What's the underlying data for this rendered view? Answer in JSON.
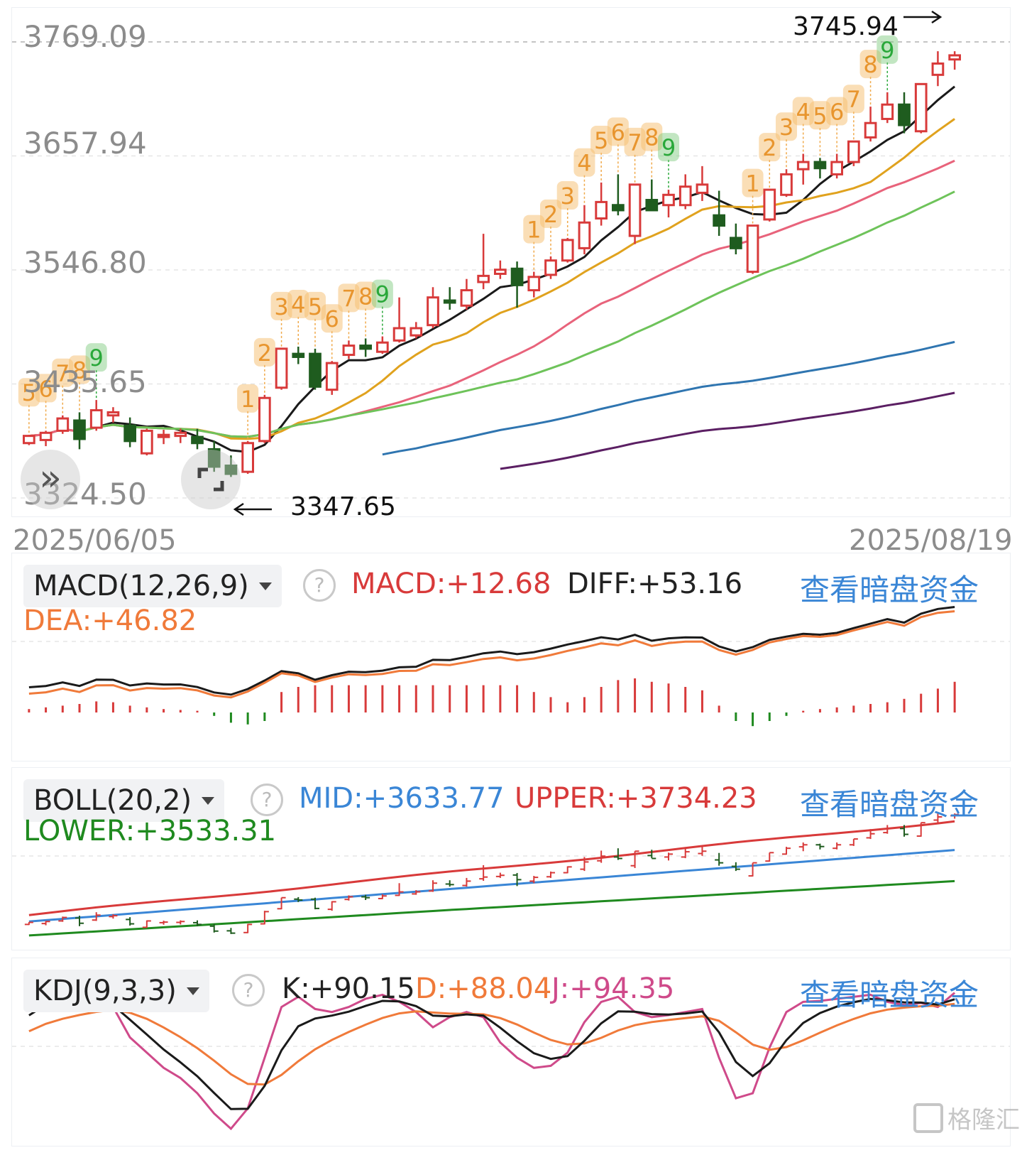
{
  "main_chart": {
    "price_labels": [
      "3769.09",
      "3657.94",
      "3546.80",
      "3435.65",
      "3324.50"
    ],
    "high_marker": "3745.94",
    "low_marker": "3347.65",
    "start_date": "2025/06/05",
    "end_date": "2025/08/19",
    "td_sequences": [
      {
        "labels": [
          "5",
          "6",
          "7",
          "8",
          "9"
        ],
        "completed": true
      },
      {
        "labels": [
          "1",
          "2",
          "3",
          "4",
          "5",
          "6",
          "7",
          "8",
          "9"
        ],
        "completed": true
      },
      {
        "labels": [
          "1",
          "2",
          "3",
          "4",
          "5",
          "6",
          "7",
          "8",
          "9"
        ],
        "completed": true
      },
      {
        "labels": [
          "1",
          "2",
          "3",
          "4",
          "5",
          "6",
          "7",
          "8",
          "9"
        ],
        "completed": true
      }
    ],
    "colors": {
      "up": "#d83a3a",
      "down": "#1f5c1f",
      "td_orange": "#f0a94a",
      "td_green": "#2aa83a"
    }
  },
  "macd": {
    "selector": "MACD(12,26,9)",
    "macd_value": "MACD:+12.68",
    "diff_value": "DIFF:+53.16",
    "dea_value": "DEA:+46.82",
    "link": "查看暗盘资金"
  },
  "boll": {
    "selector": "BOLL(20,2)",
    "mid_value": "MID:+3633.77",
    "upper_value": "UPPER:+3734.23",
    "lower_value": "LOWER:+3533.31",
    "link": "查看暗盘资金"
  },
  "kdj": {
    "selector": "KDJ(9,3,3)",
    "k_value": "K:+90.15",
    "d_value": "D:+88.04",
    "j_value": "J:+94.35",
    "link": "查看暗盘资金"
  },
  "watermark": "格隆汇",
  "chart_data": {
    "type": "candlestick",
    "x": [
      "2025/06/05",
      "2025/08/19"
    ],
    "ylim": [
      3324.5,
      3769.09
    ],
    "y_ticks": [
      3324.5,
      3435.65,
      3546.8,
      3657.94,
      3769.09
    ],
    "series": [
      {
        "name": "",
        "ohlc": [
          [
            3378,
            3386,
            3376,
            3385
          ],
          [
            3381,
            3390,
            3375,
            3388
          ],
          [
            3390,
            3405,
            3387,
            3402
          ],
          [
            3400,
            3408,
            3372,
            3382
          ],
          [
            3393,
            3420,
            3390,
            3410
          ],
          [
            3405,
            3413,
            3398,
            3408
          ],
          [
            3395,
            3403,
            3374,
            3380
          ],
          [
            3368,
            3392,
            3366,
            3390
          ],
          [
            3384,
            3391,
            3377,
            3386
          ],
          [
            3385,
            3392,
            3378,
            3388
          ],
          [
            3384,
            3392,
            3372,
            3378
          ],
          [
            3372,
            3380,
            3350,
            3355
          ],
          [
            3356,
            3366,
            3345,
            3348
          ],
          [
            3350,
            3380,
            3348,
            3378
          ],
          [
            3380,
            3425,
            3378,
            3422
          ],
          [
            3432,
            3470,
            3430,
            3470
          ],
          [
            3465,
            3472,
            3455,
            3462
          ],
          [
            3465,
            3470,
            3430,
            3433
          ],
          [
            3430,
            3458,
            3425,
            3456
          ],
          [
            3464,
            3478,
            3460,
            3473
          ],
          [
            3473,
            3480,
            3462,
            3470
          ],
          [
            3467,
            3482,
            3465,
            3476
          ],
          [
            3478,
            3520,
            3476,
            3490
          ],
          [
            3483,
            3496,
            3480,
            3490
          ],
          [
            3493,
            3530,
            3490,
            3520
          ],
          [
            3517,
            3530,
            3508,
            3515
          ],
          [
            3512,
            3538,
            3508,
            3527
          ],
          [
            3535,
            3582,
            3528,
            3541
          ],
          [
            3543,
            3556,
            3538,
            3547
          ],
          [
            3548,
            3555,
            3510,
            3532
          ],
          [
            3527,
            3545,
            3520,
            3540
          ],
          [
            3542,
            3560,
            3538,
            3556
          ],
          [
            3556,
            3578,
            3554,
            3576
          ],
          [
            3568,
            3610,
            3562,
            3593
          ],
          [
            3597,
            3632,
            3590,
            3613
          ],
          [
            3610,
            3640,
            3600,
            3605
          ],
          [
            3580,
            3630,
            3572,
            3630
          ],
          [
            3615,
            3635,
            3606,
            3605
          ],
          [
            3610,
            3625,
            3598,
            3620
          ],
          [
            3610,
            3640,
            3606,
            3628
          ],
          [
            3622,
            3648,
            3614,
            3630
          ],
          [
            3600,
            3624,
            3580,
            3590
          ],
          [
            3578,
            3592,
            3562,
            3568
          ],
          [
            3545,
            3590,
            3543,
            3590
          ],
          [
            3596,
            3625,
            3594,
            3625
          ],
          [
            3620,
            3645,
            3618,
            3640
          ],
          [
            3645,
            3660,
            3630,
            3652
          ],
          [
            3652,
            3656,
            3636,
            3646
          ],
          [
            3640,
            3660,
            3636,
            3652
          ],
          [
            3652,
            3672,
            3648,
            3672
          ],
          [
            3676,
            3706,
            3672,
            3690
          ],
          [
            3694,
            3720,
            3690,
            3708
          ],
          [
            3708,
            3720,
            3680,
            3688
          ],
          [
            3682,
            3728,
            3680,
            3728
          ],
          [
            3737,
            3760,
            3726,
            3748
          ],
          [
            3752,
            3760,
            3742,
            3756
          ]
        ]
      },
      {
        "name": "",
        "style": "moving-average",
        "color": "#1a1a1a"
      },
      {
        "name": "",
        "style": "moving-average",
        "color": "#e0a21e"
      },
      {
        "name": "",
        "style": "moving-average",
        "color": "#e8637b"
      },
      {
        "name": "",
        "style": "moving-average",
        "color": "#6ec35a"
      },
      {
        "name": "",
        "style": "moving-average",
        "color": "#2f75b0"
      },
      {
        "name": "",
        "style": "moving-average",
        "color": "#5b1f63"
      }
    ],
    "macd": {
      "diff_last": 53.16,
      "dea_last": 46.82,
      "macd_last": 12.68,
      "histogram": [
        0.4,
        0.6,
        0.8,
        1.0,
        1.3,
        1.2,
        0.8,
        0.6,
        0.4,
        0.3,
        0.2,
        -0.4,
        -1.2,
        -1.4,
        -1.0,
        2.4,
        3.0,
        3.2,
        3.2,
        3.2,
        3.2,
        3.2,
        3.2,
        3.2,
        3.2,
        3.2,
        3.2,
        3.2,
        3.2,
        3.2,
        2.4,
        1.8,
        1.2,
        1.8,
        3.0,
        3.8,
        4.0,
        3.6,
        3.4,
        3.0,
        2.6,
        0.8,
        -1.0,
        -1.6,
        -1.0,
        -0.4,
        0.2,
        0.4,
        0.6,
        0.8,
        1.0,
        1.2,
        1.6,
        2.2,
        2.8,
        3.6
      ]
    },
    "boll": {
      "mid_last": 3633.77,
      "upper_last": 3734.23,
      "lower_last": 3533.31
    },
    "kdj": {
      "k_last": 90.15,
      "d_last": 88.04,
      "j_last": 94.35
    }
  }
}
